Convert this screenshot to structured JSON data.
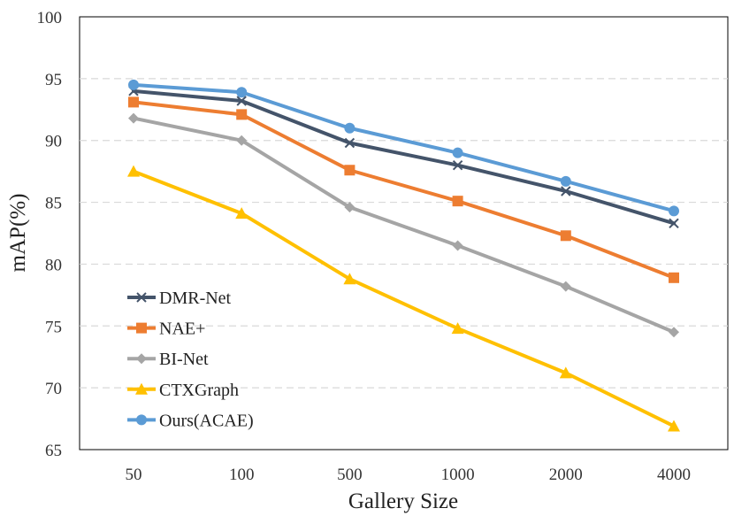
{
  "chart_data": {
    "type": "line",
    "title": "",
    "xlabel": "Gallery Size",
    "ylabel": "mAP(%)",
    "categories": [
      "50",
      "100",
      "500",
      "1000",
      "2000",
      "4000"
    ],
    "ylim": [
      65,
      100
    ],
    "yticks": [
      65,
      70,
      75,
      80,
      85,
      90,
      95,
      100
    ],
    "grid": "horizontal-dashed",
    "legend_position": "bottom-left",
    "series": [
      {
        "name": "DMR-Net",
        "marker": "x",
        "color": "#44546a",
        "values": [
          94.0,
          93.2,
          89.8,
          88.0,
          85.9,
          83.3
        ]
      },
      {
        "name": "NAE+",
        "marker": "square",
        "color": "#ed7d31",
        "values": [
          93.1,
          92.1,
          87.6,
          85.1,
          82.3,
          78.9
        ]
      },
      {
        "name": "BI-Net",
        "marker": "diamond",
        "color": "#a5a5a5",
        "values": [
          91.8,
          90.0,
          84.6,
          81.5,
          78.2,
          74.5
        ]
      },
      {
        "name": "CTXGraph",
        "marker": "triangle",
        "color": "#ffc000",
        "values": [
          87.5,
          84.1,
          78.8,
          74.8,
          71.2,
          66.9
        ]
      },
      {
        "name": "Ours(ACAE)",
        "marker": "circle",
        "color": "#5b9bd5",
        "values": [
          94.5,
          93.9,
          91.0,
          89.0,
          86.7,
          84.3
        ]
      }
    ]
  }
}
